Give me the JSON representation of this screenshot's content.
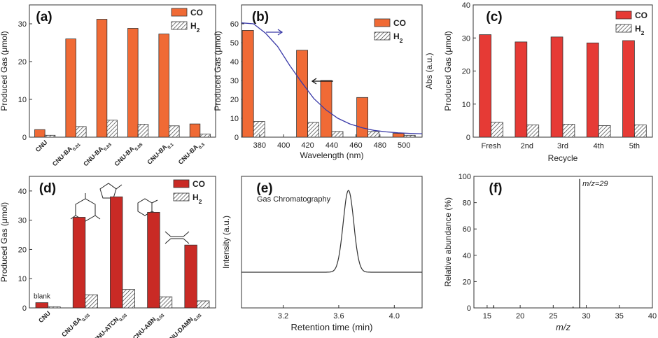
{
  "chart_data": [
    {
      "type": "bar",
      "panel_label": "(a)",
      "ylabel": "Produced Gas (μmol)",
      "xlabel": "",
      "ylim": [
        0,
        35
      ],
      "yticks": [
        0,
        10,
        20,
        30
      ],
      "categories": [
        "CNU",
        "CNU-BA0.01",
        "CNU-BA0.03",
        "CNU-BA0.05",
        "CNU-BA0.1",
        "CNU-BA0.3"
      ],
      "tick_labels": [
        {
          "main": "CNU",
          "sub": ""
        },
        {
          "main": "CNU-BA",
          "sub": "0.01"
        },
        {
          "main": "CNU-BA",
          "sub": "0.03"
        },
        {
          "main": "CNU-BA",
          "sub": "0.05"
        },
        {
          "main": "CNU-BA",
          "sub": "0.1"
        },
        {
          "main": "CNU-BA",
          "sub": "0.3"
        }
      ],
      "series": [
        {
          "name": "CO",
          "values": [
            2.0,
            26.0,
            31.2,
            28.8,
            27.3,
            3.5
          ]
        },
        {
          "name": "H2",
          "values": [
            0.5,
            2.8,
            4.5,
            3.4,
            3.0,
            0.8
          ]
        }
      ],
      "legend": [
        {
          "text": "CO",
          "sub": ""
        },
        {
          "text": "H",
          "sub": "2"
        }
      ],
      "legend_position": "top-right"
    },
    {
      "type": "bar",
      "panel_label": "(b)",
      "ylabel": "Produced Gas (μmol)",
      "y2label": "Abs (a.u.)",
      "xlabel": "Wavelength (nm)",
      "ylim": [
        0,
        70
      ],
      "xlim": [
        365,
        515
      ],
      "yticks": [
        0,
        10,
        20,
        30,
        40,
        50,
        60
      ],
      "xticks": [
        380,
        400,
        420,
        440,
        460,
        480,
        500
      ],
      "x": [
        375,
        420,
        440,
        470,
        500
      ],
      "series": [
        {
          "name": "CO",
          "values": [
            56.5,
            46.0,
            30.0,
            21.0,
            2.0
          ]
        },
        {
          "name": "H2",
          "values": [
            8.3,
            7.8,
            3.0,
            3.0,
            1.0
          ]
        }
      ],
      "absorbance_curve": {
        "x": [
          365,
          375,
          385,
          395,
          405,
          415,
          425,
          435,
          445,
          455,
          465,
          475,
          485,
          495,
          505,
          515
        ],
        "y": [
          60.5,
          60,
          55,
          48,
          38,
          29,
          20.5,
          14.5,
          10,
          7,
          5,
          3.6,
          2.8,
          2.3,
          2.0,
          1.8
        ]
      },
      "legend": [
        {
          "text": "CO",
          "sub": ""
        },
        {
          "text": "H",
          "sub": "2"
        }
      ],
      "legend_position": "top-right"
    },
    {
      "type": "bar",
      "panel_label": "(c)",
      "ylabel": "Produced Gas (μmol)",
      "xlabel": "Recycle",
      "ylim": [
        0,
        40
      ],
      "yticks": [
        0,
        10,
        20,
        30,
        40
      ],
      "categories": [
        "Fresh",
        "2nd",
        "3rd",
        "4th",
        "5th"
      ],
      "series": [
        {
          "name": "CO",
          "values": [
            31.0,
            28.8,
            30.3,
            28.5,
            29.2
          ]
        },
        {
          "name": "H2",
          "values": [
            4.5,
            3.7,
            3.9,
            3.5,
            3.7
          ]
        }
      ],
      "legend": [
        {
          "text": "CO",
          "sub": ""
        },
        {
          "text": "H",
          "sub": "2"
        }
      ],
      "legend_position": "top-right"
    },
    {
      "type": "bar",
      "panel_label": "(d)",
      "ylabel": "Produced Gas (μmol)",
      "xlabel": "",
      "ylim": [
        0,
        45
      ],
      "yticks": [
        0,
        10,
        20,
        30,
        40
      ],
      "categories": [
        "CNU",
        "CNU-BA0.03",
        "CNU-ATCN0.03",
        "CNU-ABN0.03",
        "CNU-DAMN0.03"
      ],
      "tick_labels": [
        {
          "main": "CNU",
          "sub": ""
        },
        {
          "main": "CNU-BA",
          "sub": "0.03"
        },
        {
          "main": "CNU-ATCN",
          "sub": "0.03"
        },
        {
          "main": "CNU-ABN",
          "sub": "0.03"
        },
        {
          "main": "CNU-DAMN",
          "sub": "0.03"
        }
      ],
      "series": [
        {
          "name": "CO",
          "values": [
            1.8,
            31.0,
            38.0,
            32.7,
            21.5
          ]
        },
        {
          "name": "H2",
          "values": [
            0.4,
            4.5,
            6.3,
            3.8,
            2.4
          ]
        }
      ],
      "annotations": [
        "blank"
      ],
      "legend": [
        {
          "text": "CO",
          "sub": ""
        },
        {
          "text": "H",
          "sub": "2"
        }
      ],
      "legend_position": "top-right"
    },
    {
      "type": "line",
      "panel_label": "(e)",
      "title": "Gas Chromatography",
      "ylabel": "Intensity (a.u.)",
      "xlabel": "Retention time (min)",
      "xlim": [
        2.9,
        4.2
      ],
      "ylim": [
        0,
        1.4
      ],
      "xticks": [
        3.2,
        3.6,
        4.0
      ],
      "xtick_labels": [
        "3.2",
        "3.6",
        "4.0"
      ],
      "peak": {
        "center": 3.67,
        "width": 0.038,
        "baseline": 0.38,
        "height": 0.87
      }
    },
    {
      "type": "bar",
      "panel_label": "(f)",
      "ylabel": "Relative abundance (%)",
      "xlabel": "m/z",
      "xlim": [
        13,
        40
      ],
      "ylim": [
        0,
        100
      ],
      "xticks": [
        15,
        20,
        25,
        30,
        35,
        40
      ],
      "yticks": [
        0,
        20,
        40,
        60,
        80,
        100
      ],
      "x": [
        16,
        28,
        29
      ],
      "values": [
        2,
        1,
        98
      ],
      "annotations": [
        "m/z=29"
      ]
    }
  ]
}
